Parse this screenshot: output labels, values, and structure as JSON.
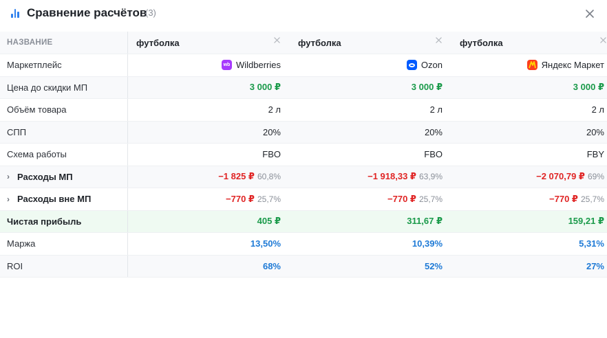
{
  "header": {
    "title": "Сравнение расчётов",
    "count": "(3)"
  },
  "table": {
    "name_header": "НАЗВАНИЕ",
    "columns": [
      {
        "product": "футболка",
        "marketplace": "Wildberries",
        "logo_text": "wb"
      },
      {
        "product": "футболка",
        "marketplace": "Ozon"
      },
      {
        "product": "футболка",
        "marketplace": "Яндекс Маркет"
      }
    ],
    "labels": {
      "marketplace": "Маркетплейс",
      "price": "Цена до скидки МП",
      "volume": "Объём товара",
      "spp": "СПП",
      "scheme": "Схема работы",
      "mp_costs": "Расходы МП",
      "non_mp_costs": "Расходы вне МП",
      "profit": "Чистая прибыль",
      "margin": "Маржа",
      "roi": "ROI"
    },
    "values": {
      "price": [
        "3 000 ₽",
        "3 000 ₽",
        "3 000 ₽"
      ],
      "volume": [
        "2 л",
        "2 л",
        "2 л"
      ],
      "spp": [
        "20%",
        "20%",
        "20%"
      ],
      "scheme": [
        "FBO",
        "FBO",
        "FBY"
      ],
      "mp_costs": [
        "−1 825 ₽",
        "−1 918,33 ₽",
        "−2 070,79 ₽"
      ],
      "mp_costs_pct": [
        "60,8%",
        "63,9%",
        "69%"
      ],
      "non_mp_costs": [
        "−770 ₽",
        "−770 ₽",
        "−770 ₽"
      ],
      "non_mp_costs_pct": [
        "25,7%",
        "25,7%",
        "25,7%"
      ],
      "profit": [
        "405 ₽",
        "311,67 ₽",
        "159,21 ₽"
      ],
      "margin": [
        "13,50%",
        "10,39%",
        "5,31%"
      ],
      "roi": [
        "68%",
        "52%",
        "27%"
      ]
    }
  },
  "colors": {
    "accent": "#2f80ed",
    "positive": "#1a9a4a",
    "negative": "#e02424",
    "metric": "#1e7ad6",
    "wildberries": "#a73afd",
    "ozon": "#005bff",
    "yandex_market": "#fc3f1d"
  },
  "icons": {
    "header": "bar-chart-icon",
    "close": "close-icon",
    "remove_column": "close-icon",
    "expand": "chevron-right-icon"
  }
}
